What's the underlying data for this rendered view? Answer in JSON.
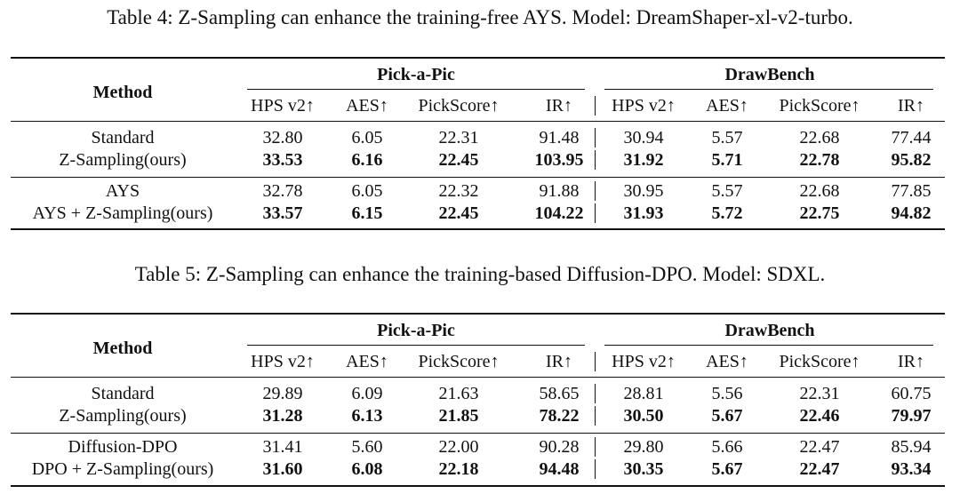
{
  "tables": [
    {
      "caption": "Table 4: Z-Sampling can enhance the training-free AYS. Model: DreamShaper-xl-v2-turbo.",
      "method_header": "Method",
      "groups": [
        "Pick-a-Pic",
        "DrawBench"
      ],
      "metrics": [
        "HPS v2↑",
        "AES↑",
        "PickScore↑",
        "IR↑",
        "HPS v2↑",
        "AES↑",
        "PickScore↑",
        "IR↑"
      ],
      "blocks": [
        [
          {
            "method": "Standard",
            "values": [
              "32.80",
              "6.05",
              "22.31",
              "91.48",
              "30.94",
              "5.57",
              "22.68",
              "77.44"
            ],
            "bold": false
          },
          {
            "method": "Z-Sampling(ours)",
            "values": [
              "33.53",
              "6.16",
              "22.45",
              "103.95",
              "31.92",
              "5.71",
              "22.78",
              "95.82"
            ],
            "bold": true
          }
        ],
        [
          {
            "method": "AYS",
            "values": [
              "32.78",
              "6.05",
              "22.32",
              "91.88",
              "30.95",
              "5.57",
              "22.68",
              "77.85"
            ],
            "bold": false
          },
          {
            "method": "AYS + Z-Sampling(ours)",
            "values": [
              "33.57",
              "6.15",
              "22.45",
              "104.22",
              "31.93",
              "5.72",
              "22.75",
              "94.82"
            ],
            "bold": true
          }
        ]
      ]
    },
    {
      "caption": "Table 5: Z-Sampling can enhance the training-based Diffusion-DPO. Model: SDXL.",
      "method_header": "Method",
      "groups": [
        "Pick-a-Pic",
        "DrawBench"
      ],
      "metrics": [
        "HPS v2↑",
        "AES↑",
        "PickScore↑",
        "IR↑",
        "HPS v2↑",
        "AES↑",
        "PickScore↑",
        "IR↑"
      ],
      "blocks": [
        [
          {
            "method": "Standard",
            "values": [
              "29.89",
              "6.09",
              "21.63",
              "58.65",
              "28.81",
              "5.56",
              "22.31",
              "60.75"
            ],
            "bold": false
          },
          {
            "method": "Z-Sampling(ours)",
            "values": [
              "31.28",
              "6.13",
              "21.85",
              "78.22",
              "30.50",
              "5.67",
              "22.46",
              "79.97"
            ],
            "bold": true
          }
        ],
        [
          {
            "method": "Diffusion-DPO",
            "values": [
              "31.41",
              "5.60",
              "22.00",
              "90.28",
              "29.80",
              "5.66",
              "22.47",
              "85.94"
            ],
            "bold": false
          },
          {
            "method": "DPO + Z-Sampling(ours)",
            "values": [
              "31.60",
              "6.08",
              "22.18",
              "94.48",
              "30.35",
              "5.67",
              "22.47",
              "93.34"
            ],
            "bold": true
          }
        ]
      ]
    }
  ]
}
